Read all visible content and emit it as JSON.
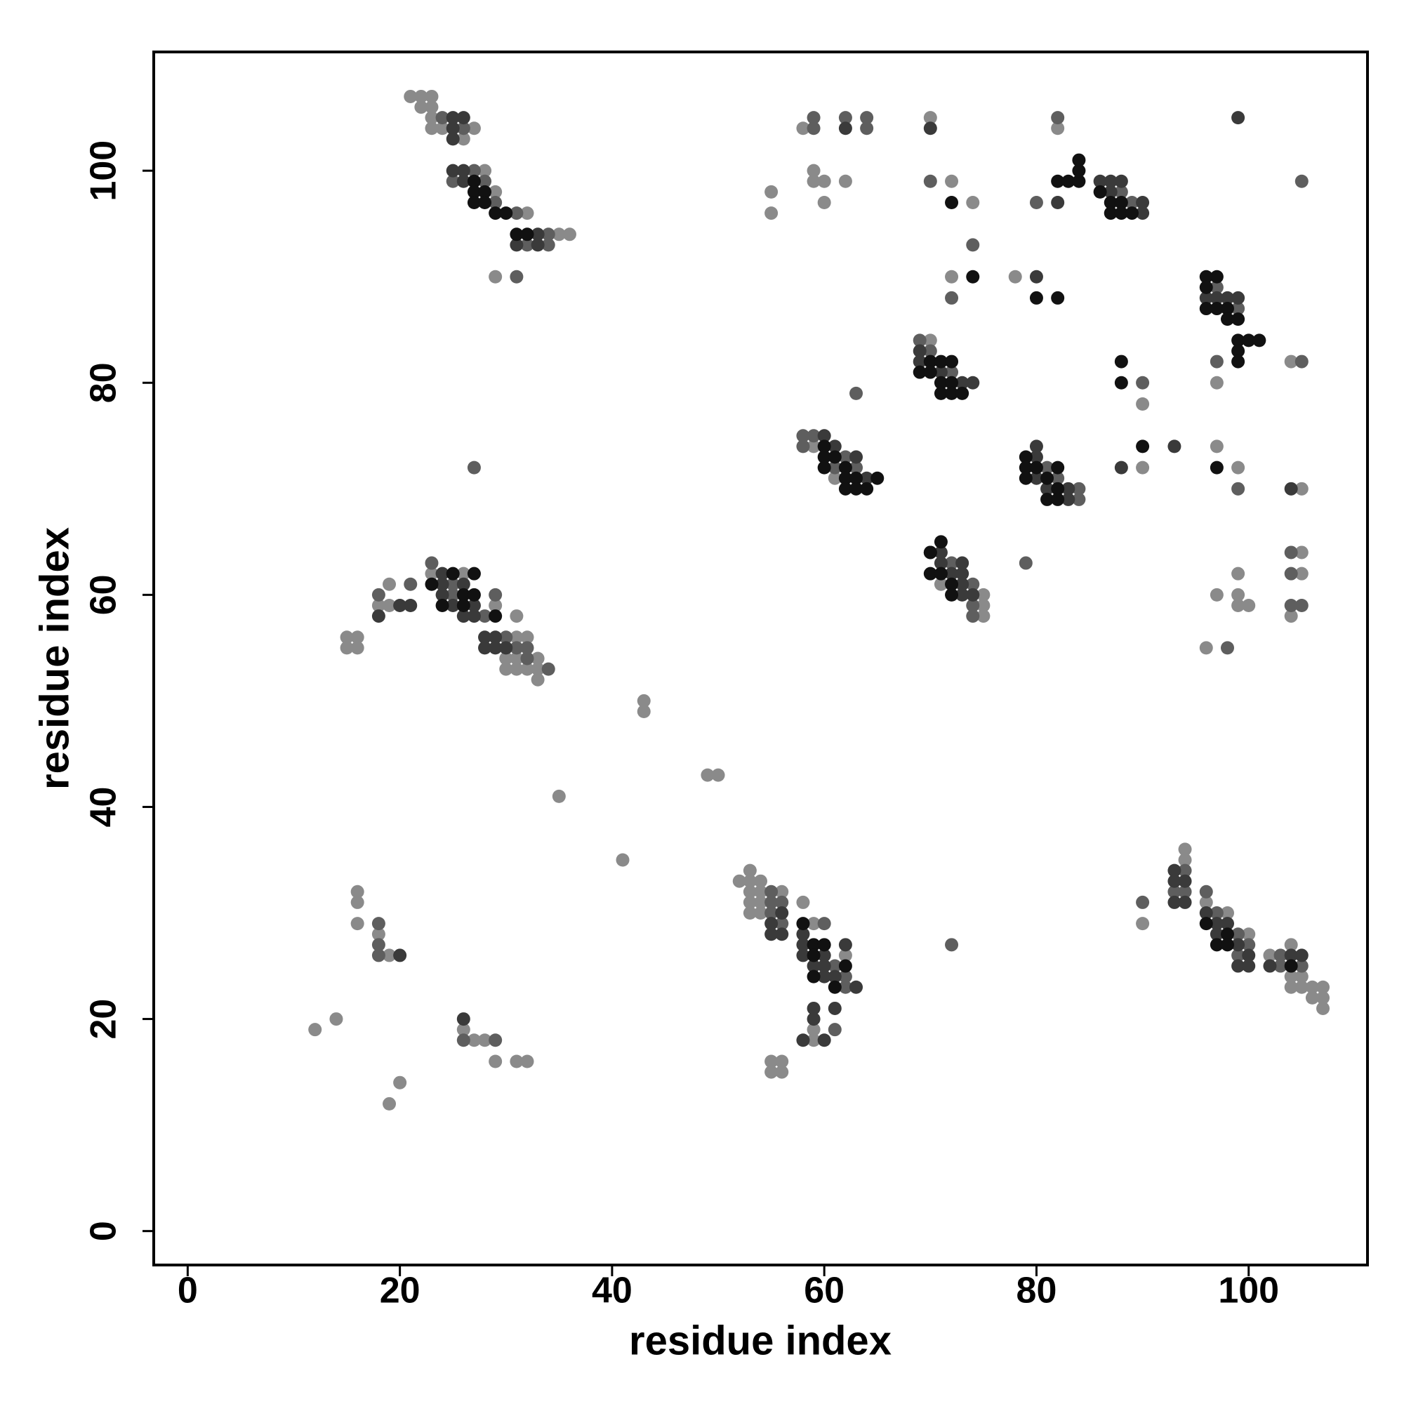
{
  "chart_data": {
    "type": "scatter",
    "x_label": "residue index",
    "y_label": "residue index",
    "xlim": [
      -3.2,
      111.2
    ],
    "ylim": [
      -3.2,
      111.2
    ],
    "xticks": [
      0,
      20,
      40,
      60,
      80,
      100
    ],
    "yticks": [
      0,
      20,
      40,
      60,
      80,
      100
    ],
    "grid": false,
    "series": [
      {
        "color": "#8a8a8a",
        "x": [
          21,
          22,
          23,
          22,
          23,
          23,
          23,
          24,
          27,
          26,
          28,
          29,
          32,
          35,
          36,
          29,
          23,
          26,
          19,
          18,
          19,
          29,
          31,
          31,
          32,
          30,
          31,
          33,
          30,
          31,
          32,
          33,
          33,
          15,
          16,
          15,
          16,
          43,
          43,
          49,
          50,
          35,
          41,
          16,
          16,
          16,
          18,
          19,
          12,
          14,
          26,
          27,
          28,
          29,
          31,
          32,
          20,
          19,
          53,
          52,
          53,
          54,
          53,
          54,
          56,
          53,
          54,
          53,
          54,
          58,
          59,
          62,
          59,
          59,
          55,
          56,
          55,
          56,
          94,
          94,
          90,
          96,
          98,
          100,
          102,
          104,
          104,
          105,
          104,
          105,
          106,
          107,
          106,
          107,
          107,
          58,
          70,
          82,
          59,
          59,
          60,
          60,
          62,
          55,
          55,
          72,
          74,
          72,
          78,
          104,
          97,
          70,
          90,
          59,
          90,
          97,
          99,
          105,
          61,
          71,
          75,
          75,
          75,
          99,
          97,
          99,
          99,
          100,
          105,
          105,
          104,
          96
        ],
        "y": [
          107,
          107,
          107,
          106,
          106,
          105,
          104,
          104,
          104,
          103,
          100,
          98,
          96,
          94,
          94,
          90,
          62,
          62,
          61,
          59,
          59,
          59,
          58,
          56,
          56,
          54,
          54,
          54,
          53,
          53,
          53,
          53,
          52,
          56,
          56,
          55,
          55,
          50,
          49,
          43,
          43,
          41,
          35,
          32,
          31,
          29,
          28,
          26,
          19,
          20,
          19,
          18,
          18,
          16,
          16,
          16,
          14,
          12,
          34,
          33,
          33,
          33,
          32,
          32,
          32,
          31,
          31,
          30,
          30,
          31,
          29,
          26,
          19,
          18,
          16,
          16,
          15,
          15,
          36,
          35,
          29,
          31,
          30,
          28,
          26,
          27,
          24,
          24,
          23,
          23,
          23,
          23,
          22,
          22,
          21,
          104,
          105,
          104,
          100,
          99,
          99,
          97,
          99,
          98,
          96,
          99,
          97,
          90,
          90,
          82,
          80,
          84,
          78,
          74,
          72,
          74,
          72,
          70,
          71,
          61,
          60,
          59,
          58,
          62,
          60,
          60,
          59,
          59,
          64,
          62,
          58,
          55
        ]
      },
      {
        "color": "#5e5e5e",
        "x": [
          24,
          26,
          27,
          25,
          28,
          29,
          31,
          34,
          32,
          34,
          31,
          27,
          23,
          25,
          25,
          29,
          18,
          21,
          28,
          30,
          31,
          32,
          32,
          34,
          18,
          18,
          18,
          26,
          29,
          55,
          55,
          56,
          55,
          56,
          60,
          61,
          62,
          62,
          61,
          72,
          94,
          93,
          94,
          90,
          96,
          97,
          99,
          100,
          99,
          103,
          103,
          105,
          59,
          59,
          62,
          64,
          64,
          82,
          70,
          80,
          74,
          72,
          97,
          99,
          97,
          105,
          69,
          70,
          72,
          63,
          90,
          58,
          59,
          58,
          62,
          61,
          63,
          81,
          82,
          84,
          84,
          99,
          89,
          88,
          105,
          72,
          74,
          74,
          74,
          79,
          104,
          104,
          104,
          105,
          98
        ],
        "y": [
          105,
          104,
          100,
          99,
          99,
          97,
          96,
          94,
          93,
          93,
          90,
          72,
          63,
          61,
          60,
          60,
          60,
          61,
          58,
          56,
          55,
          55,
          54,
          53,
          29,
          27,
          26,
          18,
          18,
          32,
          31,
          31,
          30,
          29,
          29,
          25,
          24,
          23,
          19,
          27,
          34,
          32,
          32,
          31,
          32,
          30,
          28,
          27,
          26,
          26,
          25,
          25,
          105,
          104,
          105,
          105,
          104,
          105,
          99,
          97,
          93,
          88,
          89,
          87,
          82,
          82,
          84,
          83,
          81,
          79,
          80,
          75,
          75,
          74,
          73,
          72,
          72,
          72,
          71,
          70,
          69,
          70,
          97,
          98,
          99,
          63,
          61,
          59,
          58,
          63,
          64,
          62,
          59,
          59,
          55
        ]
      },
      {
        "color": "#3a3a3a",
        "x": [
          25,
          26,
          25,
          25,
          25,
          26,
          26,
          33,
          31,
          33,
          24,
          24,
          26,
          24,
          20,
          21,
          25,
          27,
          18,
          26,
          27,
          28,
          29,
          28,
          29,
          30,
          20,
          26,
          56,
          55,
          55,
          56,
          58,
          62,
          58,
          58,
          60,
          59,
          60,
          60,
          61,
          63,
          59,
          61,
          59,
          58,
          60,
          93,
          93,
          94,
          93,
          94,
          96,
          97,
          98,
          97,
          99,
          100,
          99,
          100,
          104,
          105,
          102,
          62,
          70,
          99,
          82,
          86,
          87,
          88,
          87,
          90,
          90,
          80,
          96,
          97,
          98,
          99,
          69,
          69,
          71,
          73,
          74,
          60,
          61,
          63,
          64,
          80,
          80,
          80,
          81,
          83,
          83,
          88,
          93,
          104,
          71,
          71,
          73,
          72,
          73,
          73,
          73,
          74
        ],
        "y": [
          105,
          105,
          104,
          103,
          100,
          100,
          99,
          94,
          93,
          93,
          62,
          61,
          61,
          60,
          59,
          59,
          59,
          59,
          58,
          58,
          58,
          56,
          56,
          55,
          55,
          55,
          26,
          20,
          30,
          29,
          28,
          28,
          28,
          27,
          27,
          26,
          26,
          25,
          25,
          24,
          24,
          23,
          21,
          21,
          20,
          18,
          18,
          34,
          33,
          33,
          31,
          31,
          30,
          29,
          29,
          28,
          27,
          26,
          25,
          25,
          26,
          26,
          25,
          104,
          104,
          105,
          97,
          99,
          99,
          99,
          98,
          97,
          96,
          90,
          88,
          88,
          88,
          88,
          83,
          82,
          81,
          80,
          80,
          75,
          74,
          73,
          71,
          74,
          73,
          71,
          70,
          70,
          69,
          72,
          74,
          70,
          64,
          63,
          63,
          62,
          62,
          61,
          60,
          60
        ]
      },
      {
        "color": "#111111",
        "x": [
          27,
          27,
          28,
          27,
          28,
          29,
          30,
          31,
          32,
          25,
          27,
          23,
          26,
          27,
          24,
          26,
          29,
          58,
          59,
          60,
          59,
          62,
          59,
          61,
          96,
          98,
          97,
          98,
          104,
          72,
          82,
          83,
          84,
          84,
          84,
          86,
          87,
          88,
          87,
          88,
          89,
          74,
          80,
          82,
          96,
          97,
          96,
          96,
          97,
          98,
          98,
          99,
          99,
          100,
          101,
          99,
          99,
          70,
          71,
          72,
          69,
          70,
          71,
          72,
          71,
          72,
          73,
          88,
          88,
          60,
          60,
          61,
          60,
          62,
          62,
          63,
          65,
          62,
          63,
          64,
          79,
          79,
          80,
          82,
          79,
          81,
          82,
          81,
          82,
          90,
          97,
          71,
          70,
          70,
          70,
          71,
          72,
          72
        ],
        "y": [
          99,
          98,
          98,
          97,
          97,
          96,
          96,
          94,
          94,
          62,
          62,
          61,
          60,
          60,
          59,
          59,
          58,
          29,
          27,
          27,
          26,
          25,
          24,
          23,
          29,
          28,
          27,
          27,
          25,
          97,
          99,
          99,
          99,
          100,
          101,
          98,
          97,
          97,
          96,
          96,
          96,
          90,
          88,
          88,
          90,
          90,
          89,
          87,
          87,
          87,
          86,
          86,
          84,
          84,
          84,
          83,
          82,
          82,
          82,
          82,
          81,
          81,
          80,
          80,
          79,
          79,
          79,
          82,
          80,
          74,
          73,
          73,
          72,
          72,
          71,
          71,
          71,
          70,
          70,
          70,
          73,
          72,
          72,
          72,
          71,
          71,
          70,
          69,
          69,
          74,
          72,
          65,
          64,
          64,
          62,
          62,
          61,
          60
        ]
      }
    ]
  }
}
